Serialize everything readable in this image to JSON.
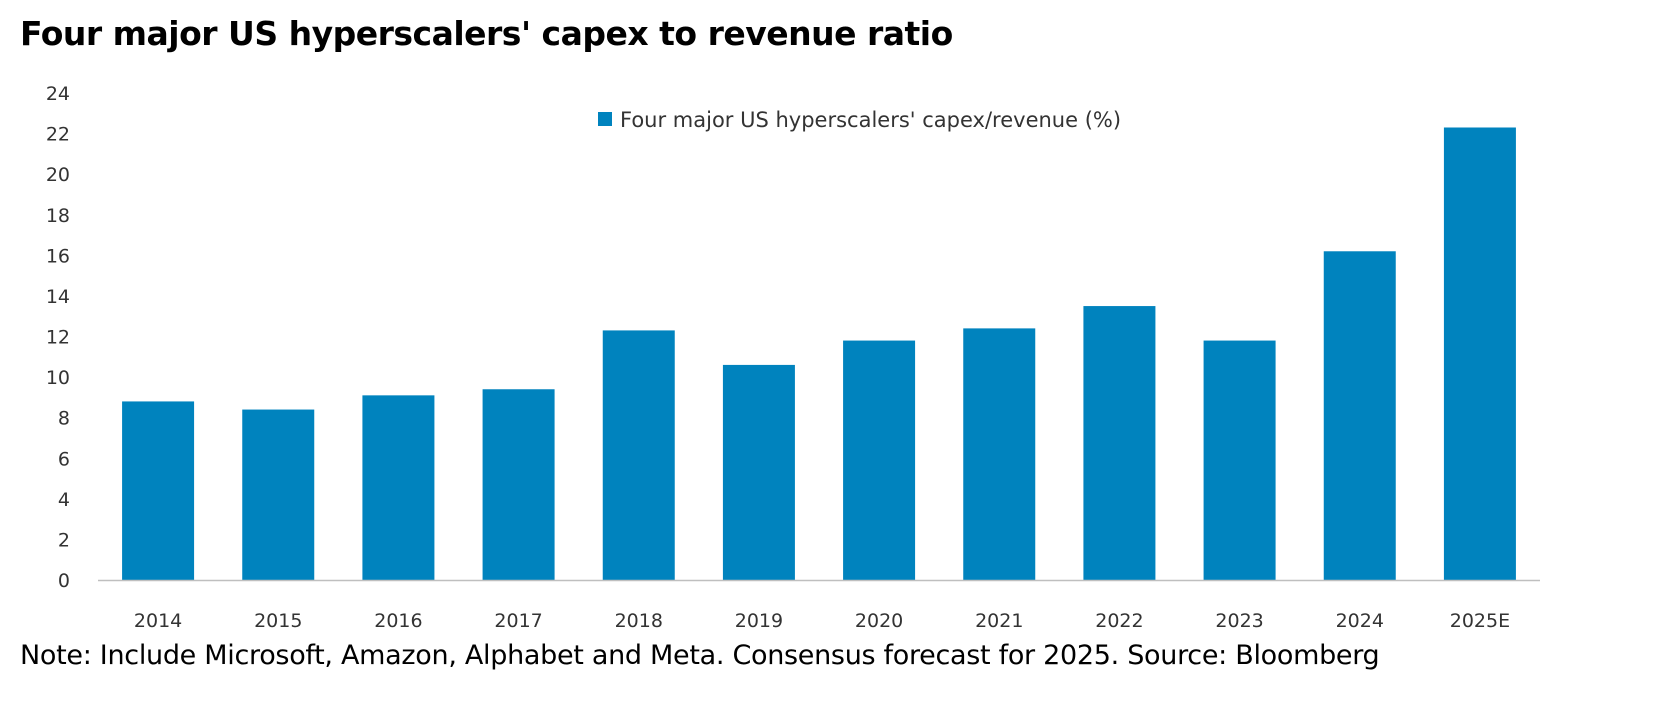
{
  "chart_data": {
    "type": "bar",
    "title": "Four major US hyperscalers' capex to revenue ratio",
    "categories": [
      "2014",
      "2015",
      "2016",
      "2017",
      "2018",
      "2019",
      "2020",
      "2021",
      "2022",
      "2023",
      "2024",
      "2025E"
    ],
    "series": [
      {
        "name": "Four major US hyperscalers' capex/revenue (%)",
        "color": "#0083BE",
        "values": [
          8.8,
          8.4,
          9.1,
          9.4,
          12.3,
          10.6,
          11.8,
          12.4,
          13.5,
          11.8,
          16.2,
          22.3
        ]
      }
    ],
    "xlabel": "",
    "ylabel": "",
    "ylim": [
      0,
      24
    ],
    "yticks": [
      "0",
      "2",
      "4",
      "6",
      "8",
      "10",
      "12",
      "14",
      "16",
      "18",
      "20",
      "22",
      "24"
    ],
    "grid": false,
    "legend": "top-center",
    "note": "Note: Include Microsoft, Amazon, Alphabet and Meta. Consensus forecast for 2025. Source: Bloomberg"
  }
}
